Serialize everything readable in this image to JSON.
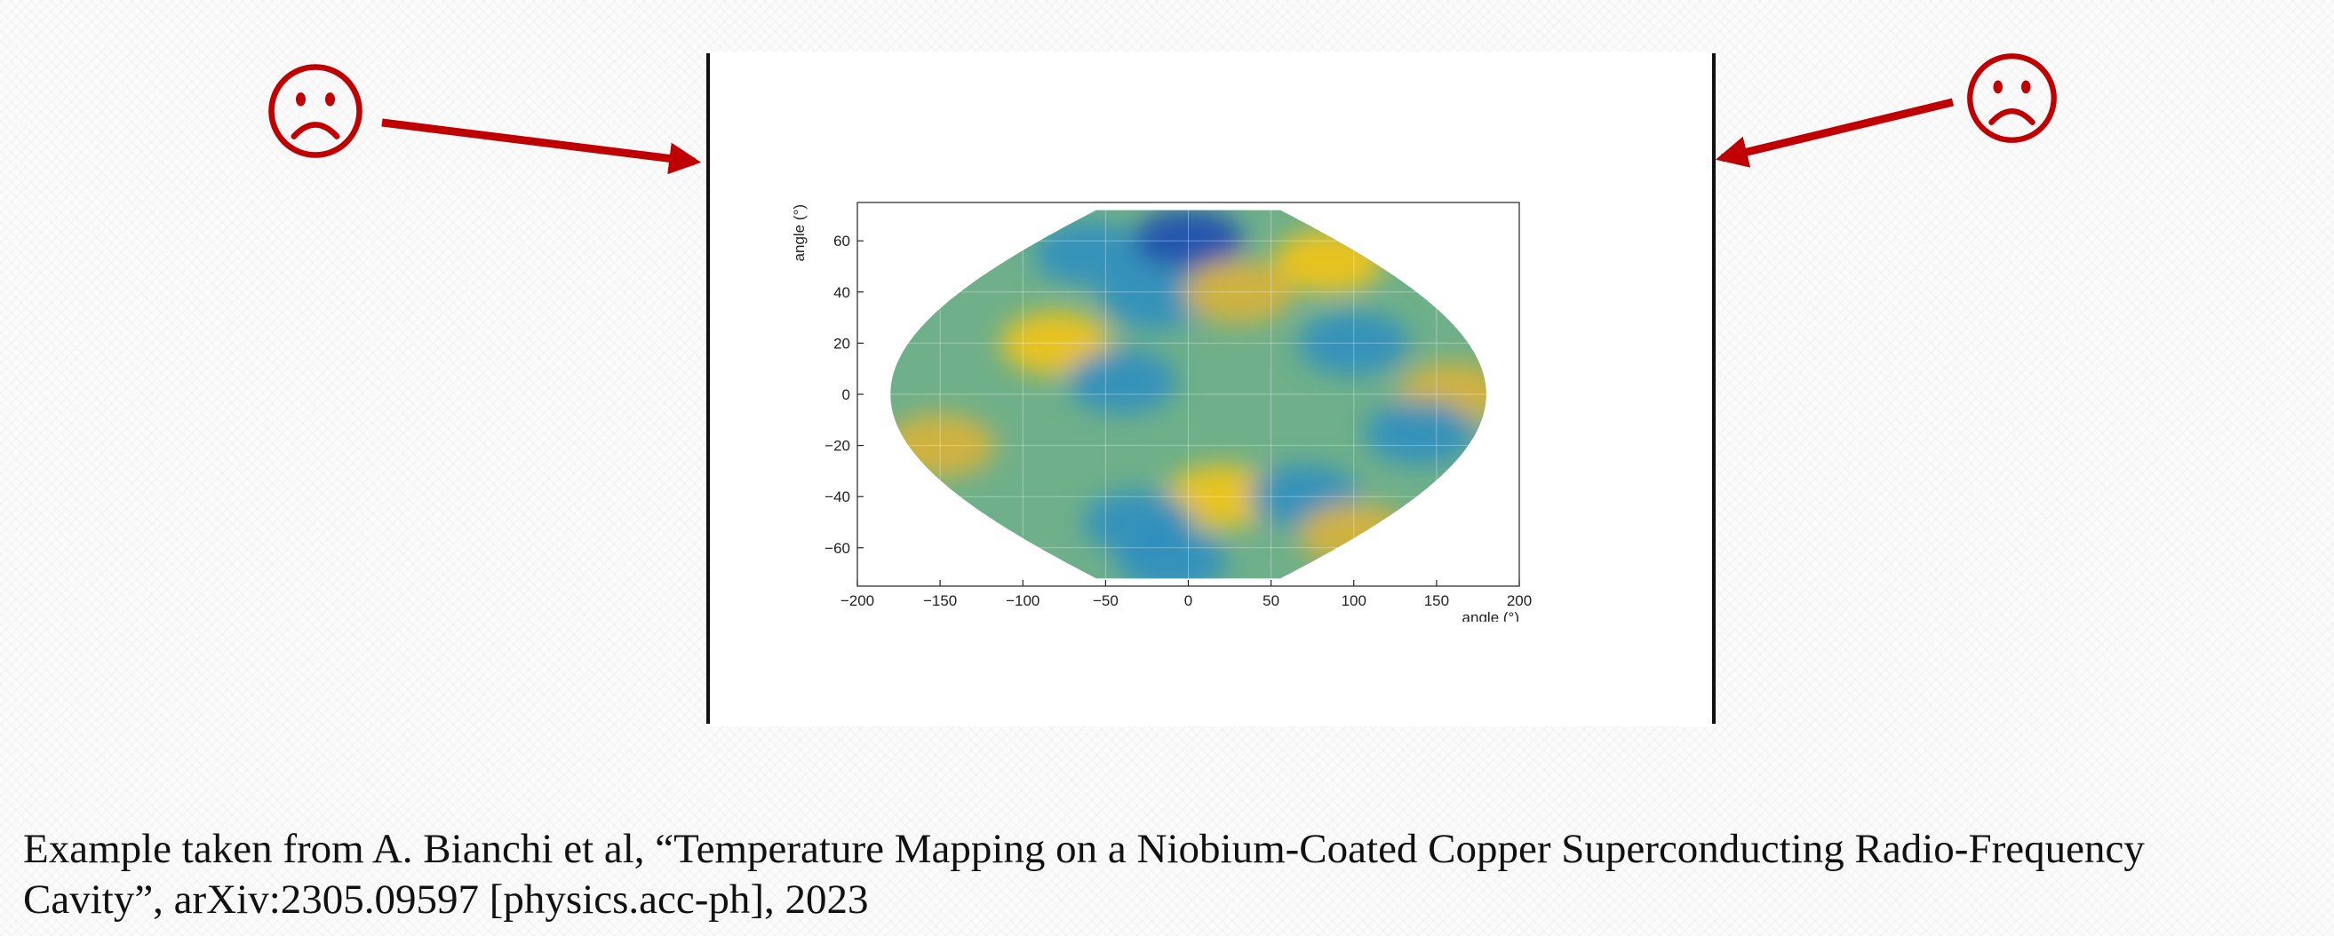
{
  "colors": {
    "accent_red": "#c00000",
    "line_black": "#111111"
  },
  "annotations": {
    "left_icon": "frown-icon",
    "right_icon": "frown-icon"
  },
  "caption": {
    "line1": "Example taken from A. Bianchi et al, “Temperature Mapping on a Niobium-Coated Copper Superconducting Radio-Frequency",
    "line2": "Cavity”, arXiv:2305.09597 [physics.acc-ph], 2023"
  },
  "chart_data": {
    "type": "heatmap",
    "projection": "sinusoidal",
    "title": "",
    "xlabel": "angle (°)",
    "ylabel": "angle (°)",
    "xlim": [
      -200,
      200
    ],
    "ylim": [
      -75,
      75
    ],
    "data_extent_y": [
      -72,
      72
    ],
    "x_ticks": [
      -200,
      -150,
      -100,
      -50,
      0,
      50,
      100,
      150,
      200
    ],
    "y_ticks": [
      -60,
      -40,
      -20,
      0,
      20,
      40,
      60
    ],
    "x_tick_labels": [
      "−200",
      "−150",
      "−100",
      "−50",
      "0",
      "50",
      "100",
      "150",
      "200"
    ],
    "y_tick_labels": [
      "−60",
      "−40",
      "−20",
      "0",
      "20",
      "40",
      "60"
    ],
    "grid": true,
    "colormap": [
      "#1f4fb0",
      "#2f8fbf",
      "#5aa89a",
      "#8ab66f",
      "#d8b23a",
      "#f2c417"
    ],
    "regions": [
      {
        "x": -60,
        "y": 55,
        "value": 0.1
      },
      {
        "x": 0,
        "y": 60,
        "value": 0.05
      },
      {
        "x": -20,
        "y": 38,
        "value": 0.1
      },
      {
        "x": 85,
        "y": 52,
        "value": 0.9
      },
      {
        "x": 30,
        "y": 40,
        "value": 0.85
      },
      {
        "x": -80,
        "y": 20,
        "value": 0.9
      },
      {
        "x": -40,
        "y": 5,
        "value": 0.1
      },
      {
        "x": 100,
        "y": 20,
        "value": 0.2
      },
      {
        "x": -150,
        "y": -20,
        "value": 0.85
      },
      {
        "x": 20,
        "y": -40,
        "value": 0.9
      },
      {
        "x": -30,
        "y": -50,
        "value": 0.15
      },
      {
        "x": -10,
        "y": -65,
        "value": 0.1
      },
      {
        "x": 70,
        "y": -40,
        "value": 0.15
      },
      {
        "x": 100,
        "y": -55,
        "value": 0.85
      },
      {
        "x": 160,
        "y": 0,
        "value": 0.85
      },
      {
        "x": 140,
        "y": -15,
        "value": 0.2
      }
    ]
  }
}
